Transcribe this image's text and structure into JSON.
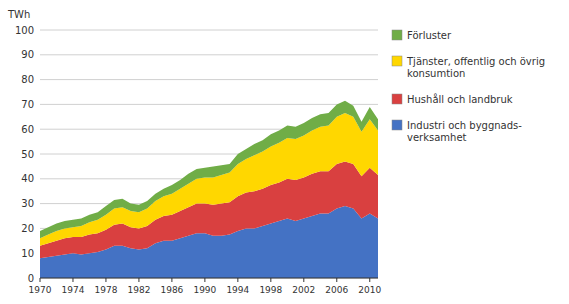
{
  "chart_data": {
    "type": "area",
    "stacked": true,
    "y_label": "TWh",
    "x": [
      1970,
      1971,
      1972,
      1973,
      1974,
      1975,
      1976,
      1977,
      1978,
      1979,
      1980,
      1981,
      1982,
      1983,
      1984,
      1985,
      1986,
      1987,
      1988,
      1989,
      1990,
      1991,
      1992,
      1993,
      1994,
      1995,
      1996,
      1997,
      1998,
      1999,
      2000,
      2001,
      2002,
      2003,
      2004,
      2005,
      2006,
      2007,
      2008,
      2009,
      2010,
      2011
    ],
    "series": [
      {
        "name": "Industri och byggnads-\nverksamhet",
        "color": "#4472C4",
        "values": [
          8,
          8.5,
          9,
          9.5,
          10,
          9.5,
          10,
          10.5,
          11.5,
          13,
          13,
          12,
          11.5,
          12,
          14,
          15,
          15,
          16,
          17,
          18,
          18,
          17,
          17,
          17.5,
          19,
          20,
          20,
          21,
          22,
          23,
          24,
          23,
          24,
          25,
          26,
          26,
          28,
          29,
          28,
          24,
          26,
          24
        ]
      },
      {
        "name": "Hushåll och landbruk",
        "color": "#D94040",
        "values": [
          5,
          5.5,
          6,
          6.5,
          6.5,
          7,
          7.5,
          7.5,
          8,
          8.5,
          9,
          8.5,
          8.5,
          9,
          9.5,
          10,
          10.5,
          11,
          11.5,
          12,
          12,
          12.5,
          13,
          13,
          14,
          14.5,
          15,
          15,
          15.5,
          15.5,
          16,
          16.5,
          16.5,
          17,
          17,
          17,
          18,
          18,
          18,
          17,
          18.5,
          17.5
        ]
      },
      {
        "name": "Tjänster, offentlig och övrig\nkonsumtion",
        "color": "#FFD700",
        "values": [
          3,
          3.5,
          4,
          4,
          4,
          4.5,
          5,
          5.5,
          6,
          6.5,
          6.5,
          6.5,
          6.5,
          7,
          7.5,
          8,
          8.5,
          9,
          9.5,
          10,
          10.5,
          11,
          11.5,
          12,
          13,
          13.5,
          14.5,
          15,
          15.5,
          16,
          16.5,
          16.5,
          17,
          17.5,
          18,
          18.5,
          19,
          19.5,
          19,
          18,
          19.5,
          18
        ]
      },
      {
        "name": "Förluster",
        "color": "#70AD47",
        "values": [
          3,
          3,
          3,
          3,
          3,
          3,
          3,
          3,
          3.5,
          3.5,
          3.5,
          3,
          3,
          3,
          3,
          3,
          3.5,
          3.5,
          4,
          4,
          4,
          4.5,
          4,
          3.5,
          4,
          4,
          4.5,
          4.5,
          5,
          5,
          5,
          5,
          5,
          5,
          5,
          5,
          5,
          5,
          4.5,
          4,
          5,
          4.5
        ]
      }
    ],
    "xlim": [
      1970,
      2011
    ],
    "xticks": [
      1970,
      1974,
      1978,
      1982,
      1986,
      1990,
      1994,
      1998,
      2002,
      2006,
      2010
    ],
    "ylim": [
      0,
      100
    ],
    "yticks": [
      0,
      10,
      20,
      30,
      40,
      50,
      60,
      70,
      80,
      90,
      100
    ],
    "grid": true,
    "legend": "right"
  }
}
